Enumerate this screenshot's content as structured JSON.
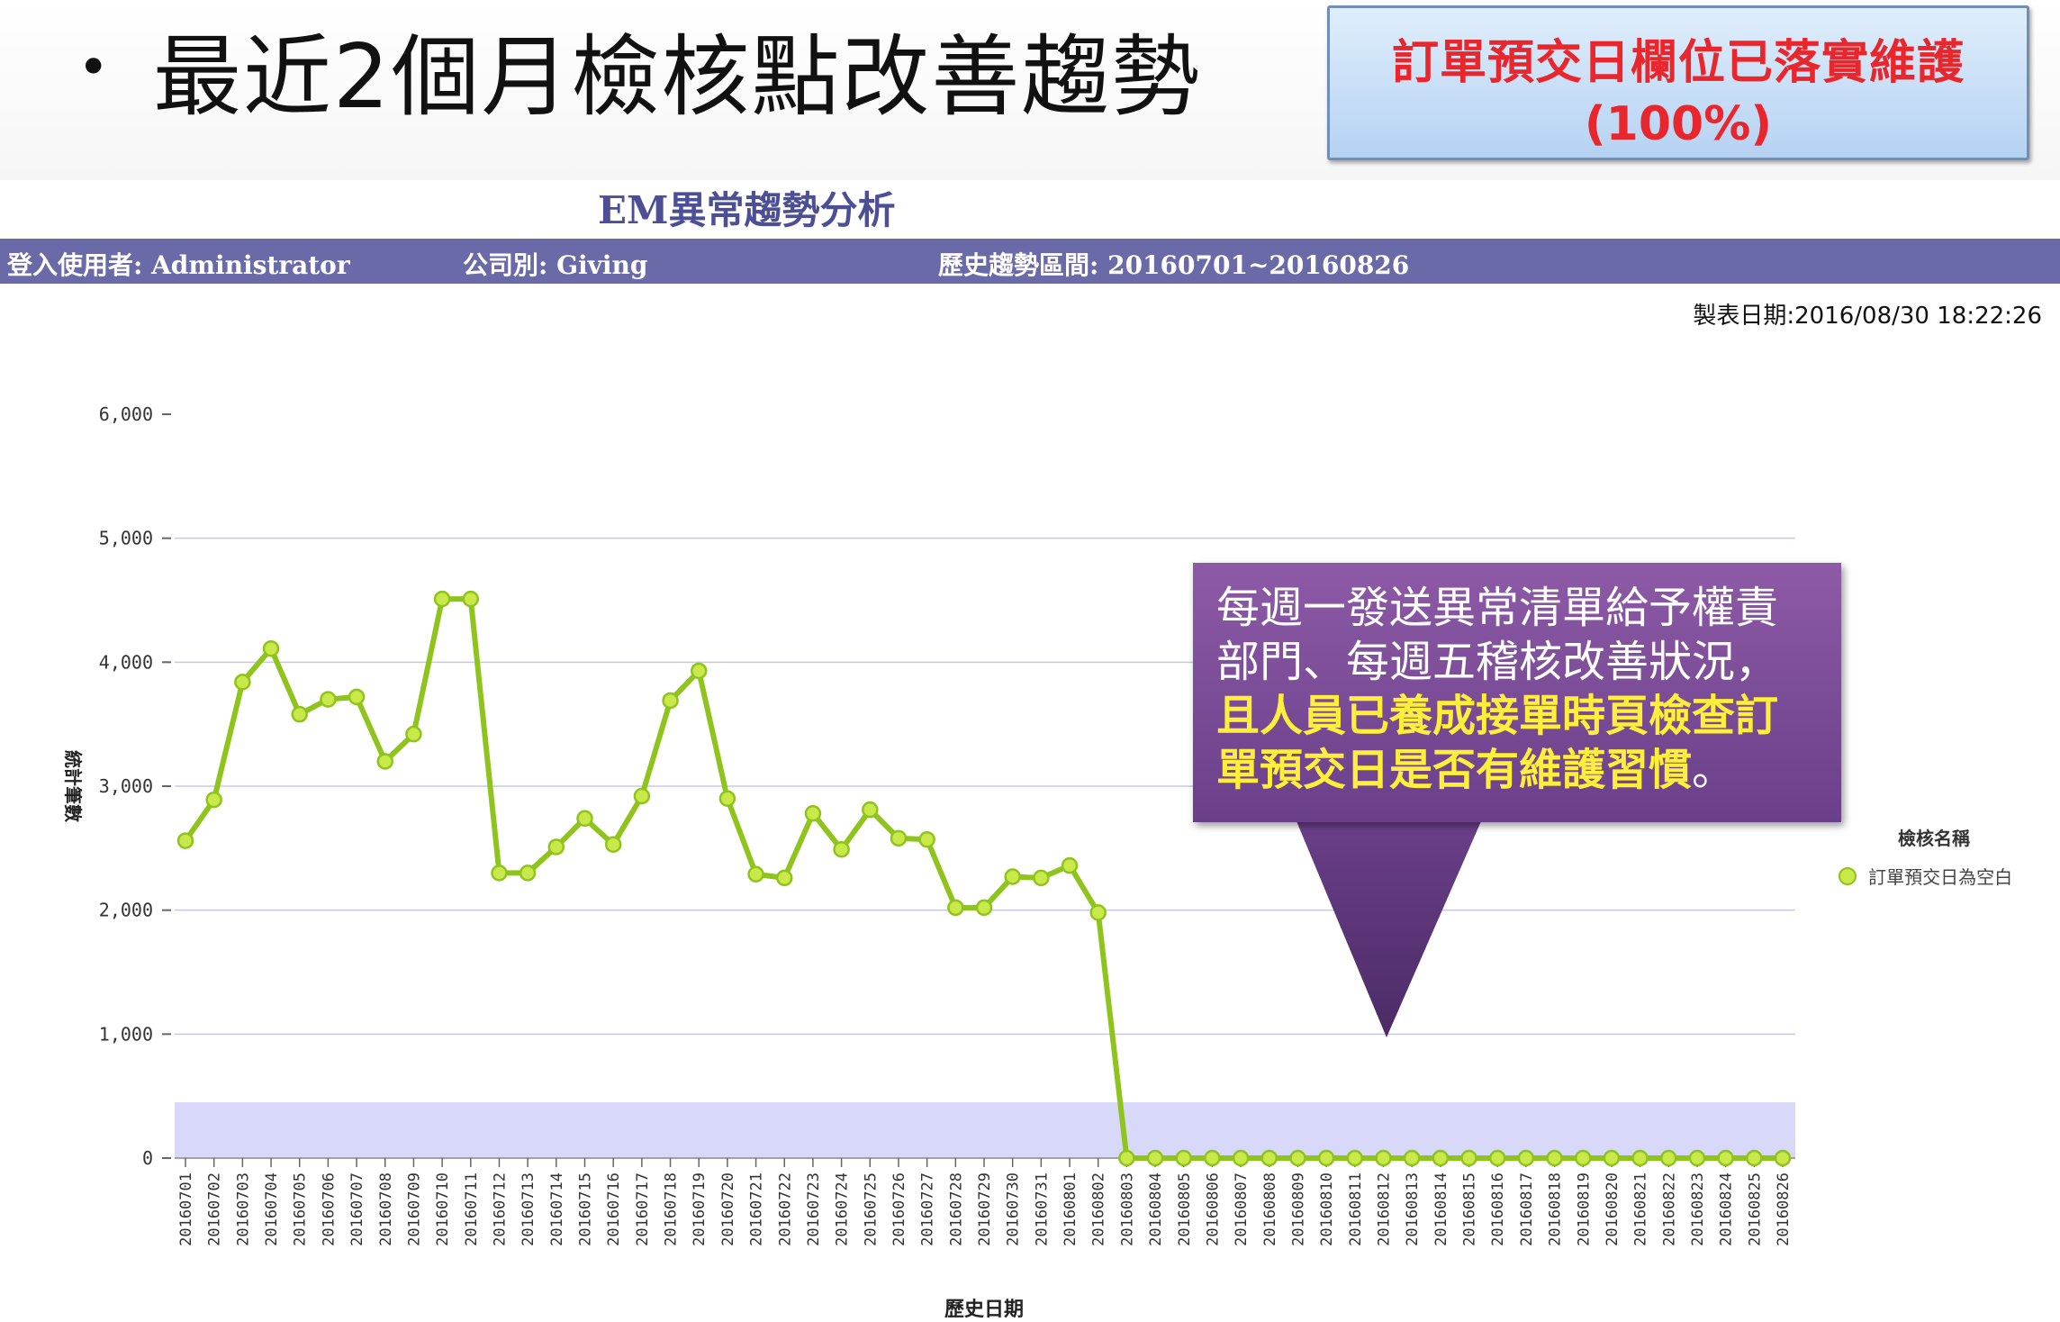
{
  "slide": {
    "bullet": "•",
    "title": "最近2個月檢核點改善趨勢",
    "callout_top_line1": "訂單預交日欄位已落實維護",
    "callout_top_line2": "(100%)"
  },
  "report": {
    "title": "EM異常趨勢分析",
    "user": "登入使用者: Administrator",
    "company": "公司別: Giving",
    "range": "歷史趨勢區間: 20160701~20160826",
    "print_date": "製表日期:2016/08/30 18:22:26"
  },
  "annotation": {
    "line1": "每週一發送異常清單給予權責",
    "line2": "部門、每週五稽核改善狀況，",
    "line3": "且人員已養成接單時頁檢查訂",
    "line4_hl": "單預交日是否有維護習慣",
    "line4_end": "。"
  },
  "legend": {
    "title": "檢核名稱",
    "item": "訂單預交日為空白"
  },
  "colors": {
    "line": "#8ec41c",
    "point_fill": "#c9e84a",
    "band": "#d8d8f8",
    "grid": "#c8c8e6"
  },
  "chart_data": {
    "type": "line",
    "ylabel": "統計筆數",
    "xlabel": "歷史日期",
    "ylim": [
      0,
      6000
    ],
    "yticks": [
      0,
      1000,
      2000,
      3000,
      4000,
      5000,
      6000
    ],
    "ytick_labels": [
      "0",
      "1,000",
      "2,000",
      "3,000",
      "4,000",
      "5,000",
      "6,000"
    ],
    "x": [
      "20160701",
      "20160702",
      "20160703",
      "20160704",
      "20160705",
      "20160706",
      "20160707",
      "20160708",
      "20160709",
      "20160710",
      "20160711",
      "20160712",
      "20160713",
      "20160714",
      "20160715",
      "20160716",
      "20160717",
      "20160718",
      "20160719",
      "20160720",
      "20160721",
      "20160722",
      "20160723",
      "20160724",
      "20160725",
      "20160726",
      "20160727",
      "20160728",
      "20160729",
      "20160730",
      "20160731",
      "20160801",
      "20160802",
      "20160803",
      "20160804",
      "20160805",
      "20160806",
      "20160807",
      "20160808",
      "20160809",
      "20160810",
      "20160811",
      "20160812",
      "20160813",
      "20160814",
      "20160815",
      "20160816",
      "20160817",
      "20160818",
      "20160819",
      "20160820",
      "20160821",
      "20160822",
      "20160823",
      "20160824",
      "20160825",
      "20160826"
    ],
    "series": [
      {
        "name": "訂單預交日為空白",
        "values": [
          2560,
          2890,
          3840,
          4110,
          3580,
          3700,
          3720,
          3200,
          3420,
          4510,
          4510,
          2300,
          2300,
          2510,
          2740,
          2530,
          2920,
          3690,
          3930,
          2900,
          2290,
          2260,
          2780,
          2490,
          2810,
          2580,
          2570,
          2020,
          2020,
          2270,
          2260,
          2360,
          1980,
          0,
          0,
          0,
          0,
          0,
          0,
          0,
          0,
          0,
          0,
          0,
          0,
          0,
          0,
          0,
          0,
          0,
          0,
          0,
          0,
          0,
          0,
          0,
          0
        ]
      }
    ],
    "band": [
      0,
      450
    ],
    "grid": true,
    "legend_position": "right"
  }
}
